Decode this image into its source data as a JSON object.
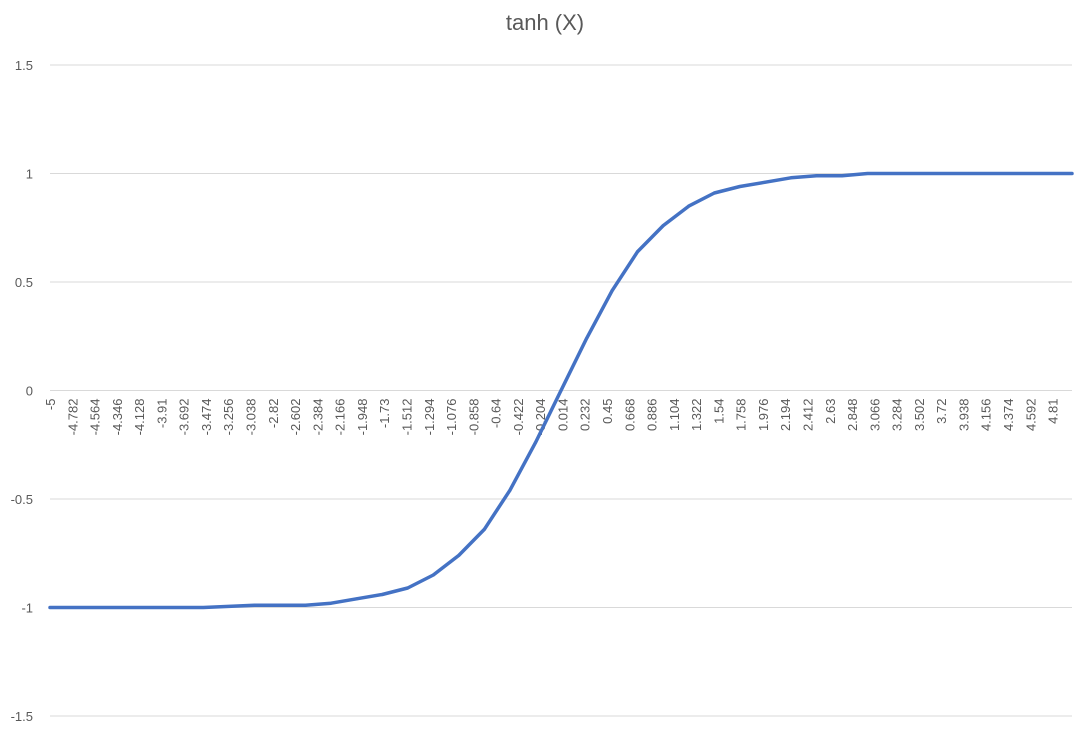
{
  "chart_data": {
    "type": "line",
    "title": "tanh (X)",
    "xlabel": "",
    "ylabel": "",
    "ylim": [
      -1.5,
      1.5
    ],
    "y_ticks": [
      "1.5",
      "1",
      "0.5",
      "0",
      "-0.5",
      "-1",
      "-1.5"
    ],
    "grid": true,
    "legend": "none",
    "x_tick_labels": [
      "-5",
      "-4.782",
      "-4.564",
      "-4.346",
      "-4.128",
      "-3.91",
      "-3.692",
      "-3.474",
      "-3.256",
      "-3.038",
      "-2.82",
      "-2.602",
      "-2.384",
      "-2.166",
      "-1.948",
      "-1.73",
      "-1.512",
      "-1.294",
      "-1.076",
      "-0.858",
      "-0.64",
      "-0.422",
      "-0.204",
      "0.014",
      "0.232",
      "0.45",
      "0.668",
      "0.886",
      "1.104",
      "1.322",
      "1.54",
      "1.758",
      "1.976",
      "2.194",
      "2.412",
      "2.63",
      "2.848",
      "3.066",
      "3.284",
      "3.502",
      "3.72",
      "3.938",
      "4.156",
      "4.374",
      "4.592",
      "4.81"
    ],
    "series": [
      {
        "color": "#4472c4",
        "x_start": -5,
        "x_end": 5,
        "x_step": 0.218,
        "x": [
          -5,
          -4.5,
          -4,
          -3.5,
          -3,
          -2.75,
          -2.5,
          -2.25,
          -2,
          -1.75,
          -1.5,
          -1.25,
          -1,
          -0.75,
          -0.5,
          -0.25,
          0,
          0.25,
          0.5,
          0.75,
          1,
          1.25,
          1.5,
          1.75,
          2,
          2.25,
          2.5,
          2.75,
          3,
          3.5,
          4,
          4.5,
          5
        ],
        "values": [
          -1,
          -1,
          -1,
          -1,
          -0.99,
          -0.99,
          -0.99,
          -0.98,
          -0.96,
          -0.94,
          -0.91,
          -0.85,
          -0.76,
          -0.64,
          -0.46,
          -0.24,
          0,
          0.24,
          0.46,
          0.64,
          0.76,
          0.85,
          0.91,
          0.94,
          0.96,
          0.98,
          0.99,
          0.99,
          1,
          1,
          1,
          1,
          1
        ]
      }
    ]
  }
}
